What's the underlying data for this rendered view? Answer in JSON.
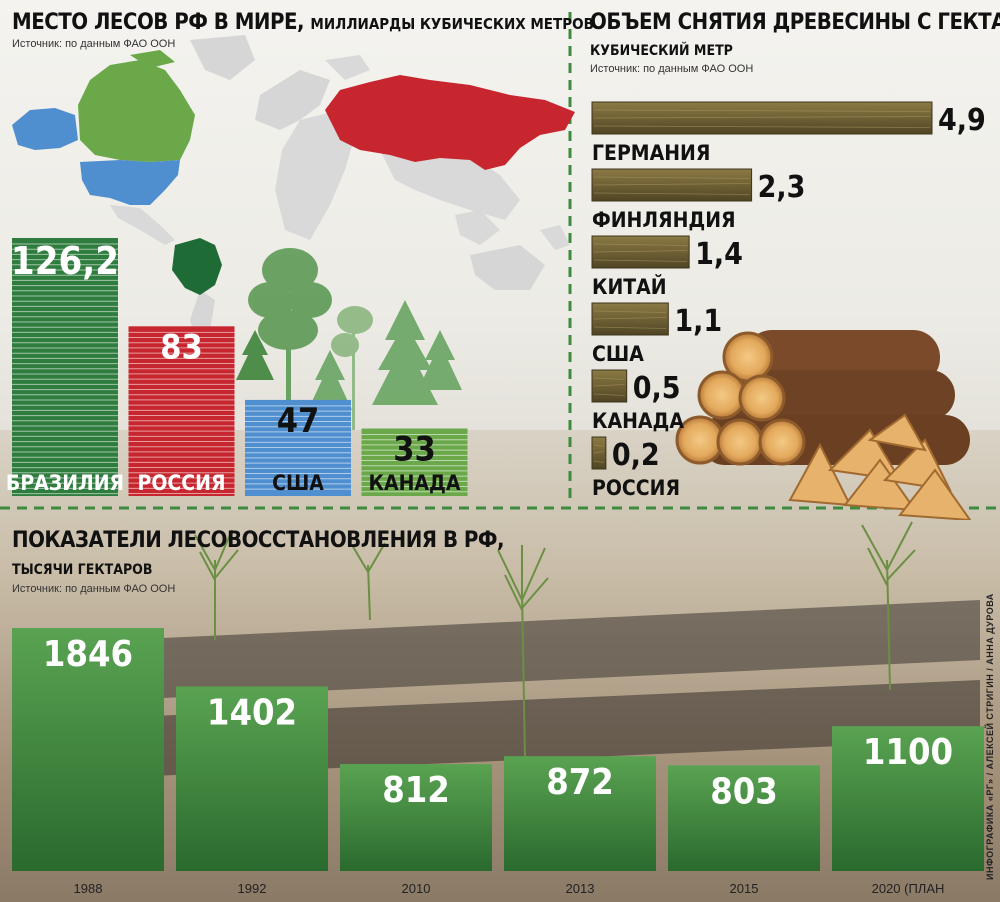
{
  "chart_data": [
    {
      "type": "bar",
      "title": "МЕСТО ЛЕСОВ РФ В МИРЕ,",
      "subtitle": "МИЛЛИАРДЫ КУБИЧЕСКИХ МЕТРОВ",
      "source": "Источник: по данным ФАО ООН",
      "categories": [
        "БРАЗИЛИЯ",
        "РОССИЯ",
        "США",
        "КАНАДА"
      ],
      "values": [
        126.2,
        83,
        47,
        33
      ],
      "value_labels": [
        "126,2",
        "83",
        "47",
        "33"
      ],
      "colors": [
        "#2f7d3e",
        "#c7262f",
        "#4f8fcf",
        "#6aa84a"
      ],
      "ylim": [
        0,
        126.2
      ]
    },
    {
      "type": "bar",
      "orientation": "horizontal",
      "title": "ОБЪЕМ СНЯТИЯ ДРЕВЕСИНЫ С ГЕКТАРА,",
      "subtitle": "КУБИЧЕСКИЙ МЕТР",
      "source": "Источник: по данным ФАО ООН",
      "categories": [
        "ГЕРМАНИЯ",
        "ФИНЛЯНДИЯ",
        "КИТАЙ",
        "США",
        "КАНАДА",
        "РОССИЯ"
      ],
      "values": [
        4.9,
        2.3,
        1.4,
        1.1,
        0.5,
        0.2
      ],
      "value_labels": [
        "4,9",
        "2,3",
        "1,4",
        "1,1",
        "0,5",
        "0,2"
      ],
      "xlim": [
        0,
        4.9
      ]
    },
    {
      "type": "bar",
      "title": "ПОКАЗАТЕЛИ ЛЕСОВОССТАНОВЛЕНИЯ В РФ,",
      "subtitle": "ТЫСЯЧИ ГЕКТАРОВ",
      "source": "Источник: по данным ФАО ООН",
      "categories": [
        "1988",
        "1992",
        "2010",
        "2013",
        "2015",
        "2020 (ПЛАН"
      ],
      "values": [
        1846,
        1402,
        812,
        872,
        803,
        1100
      ],
      "value_labels": [
        "1846",
        "1402",
        "812",
        "872",
        "803",
        "1100"
      ],
      "ylim": [
        0,
        1846
      ]
    }
  ],
  "credit": "ИНФОГРАФИКА «РГ» / АЛЕКСЕЙ СТРИГИН / АННА ДУРОВА",
  "colors": {
    "russia_map": "#c7262f",
    "usa_map": "#4f8fcf",
    "canada_map": "#6aa84a",
    "alaska_map": "#4f8fcf",
    "brazil_map": "#1f6b35",
    "green_bar_top": "#4f9a4a",
    "green_bar_bottom": "#2b6f31",
    "wood_light": "#7b6a3a",
    "wood_dark": "#4a3f22"
  }
}
